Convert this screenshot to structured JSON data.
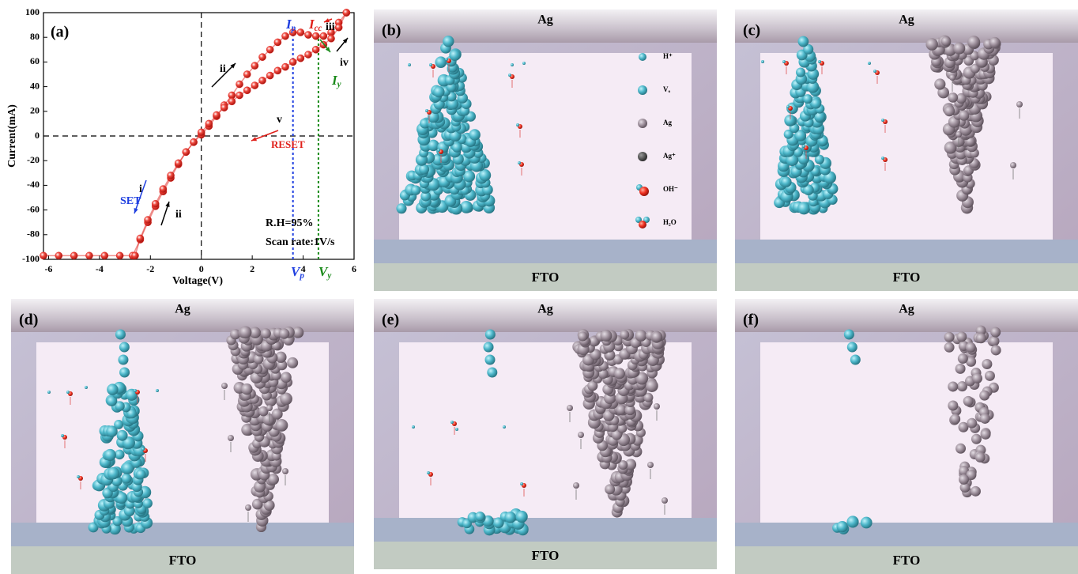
{
  "chart_data": {
    "type": "scatter",
    "panel_label": "(a)",
    "x_label": "Voltage(V)",
    "y_label": "Current(mA)",
    "xlim": [
      -6.2,
      6
    ],
    "xticks": [
      -6,
      -4,
      -2,
      0,
      2,
      4,
      6
    ],
    "ylim": [
      -100,
      100
    ],
    "yticks": [
      -100,
      -80,
      -60,
      -40,
      -20,
      0,
      20,
      40,
      60,
      80,
      100
    ],
    "series": [
      {
        "color": "#e0201a",
        "x": [
          -6.2,
          -5.6,
          -5,
          -4.4,
          -3.8,
          -3.2,
          -2.7,
          -2.4,
          -2.1,
          -1.8,
          -1.5,
          -1.2,
          -0.9,
          -0.6,
          -0.3,
          0,
          0.3,
          0.6,
          0.9,
          1.2,
          1.5,
          1.8,
          2.1,
          2.4,
          2.7,
          3,
          3.3,
          3.6,
          3.9,
          4.2,
          4.5,
          4.8,
          5.1,
          5.4,
          5.7
        ],
        "values": [
          -97,
          -97,
          -97,
          -97,
          -97,
          -97,
          -97,
          -84,
          -70,
          -57,
          -45,
          -34,
          -23,
          -13,
          -5,
          1,
          8,
          16,
          25,
          33,
          42,
          50,
          57,
          64,
          70,
          76,
          81,
          84,
          84,
          82,
          81,
          81,
          84,
          92,
          100
        ]
      },
      {
        "color": "#e0201a",
        "x": [
          5.7,
          5.4,
          5.1,
          4.8,
          4.5,
          4.2,
          3.9,
          3.6,
          3.3,
          3,
          2.7,
          2.4,
          2.1,
          1.8,
          1.5,
          1.2,
          0.9,
          0.6,
          0.3,
          0,
          -0.3,
          -0.6,
          -0.9,
          -1.2,
          -1.5,
          -1.8,
          -2.1,
          -2.4,
          -2.6
        ],
        "values": [
          100,
          88,
          79,
          74,
          70,
          66,
          63,
          60,
          56,
          53,
          49,
          45,
          41,
          37,
          33,
          28,
          23,
          17,
          10,
          3,
          -5,
          -13,
          -22,
          -32,
          -43,
          -55,
          -68,
          -83,
          -97
        ]
      }
    ],
    "vlines": [
      {
        "value": 3.6,
        "to": 84,
        "color": "#1f3fe0"
      },
      {
        "value": 4.6,
        "to": 81,
        "color": "#1a8a1a"
      }
    ],
    "annotations": [
      {
        "text": "ii",
        "color": "#000000"
      },
      {
        "text": "iii",
        "color": "#000000"
      },
      {
        "text": "iv",
        "color": "#000000"
      },
      {
        "text": "v",
        "color": "#000000"
      },
      {
        "text": "RESET",
        "color": "#e0201a"
      },
      {
        "text": "SET",
        "color": "#1f3fe0"
      },
      {
        "text": "i",
        "color": "#000000"
      },
      {
        "text": "ii",
        "color": "#000000"
      },
      {
        "text": "R.H=95%",
        "color": "#000000"
      },
      {
        "text": "Scan rate:1V/s",
        "color": "#000000"
      },
      {
        "text": "I",
        "sub": "p",
        "color": "#1f3fe0"
      },
      {
        "text": "I",
        "sub": "cc",
        "color": "#e0201a"
      },
      {
        "text": "I",
        "sub": "y",
        "color": "#1a8a1a"
      },
      {
        "text": "V",
        "sub": "p",
        "color": "#1f3fe0"
      },
      {
        "text": "V",
        "sub": "y",
        "color": "#1a8a1a"
      }
    ]
  },
  "panels": [
    {
      "label": "(b)",
      "top": "Ag",
      "bottom": "FTO",
      "legend": [
        "H⁺",
        "Vₒ",
        "Ag",
        "Ag⁺",
        "OH⁻",
        "H₂O"
      ]
    },
    {
      "label": "(c)",
      "top": "Ag",
      "bottom": "FTO"
    },
    {
      "label": "(d)",
      "top": "Ag",
      "bottom": "FTO"
    },
    {
      "label": "(e)",
      "top": "Ag",
      "bottom": "FTO"
    },
    {
      "label": "(f)",
      "top": "Ag",
      "bottom": "FTO"
    }
  ]
}
